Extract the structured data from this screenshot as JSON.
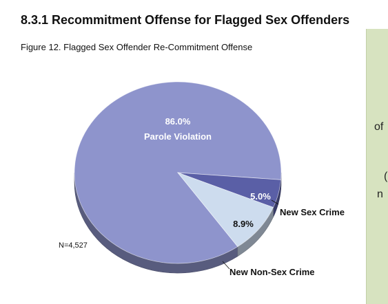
{
  "section_heading": "8.3.1  Recommitment Offense for Flagged Sex Offenders",
  "figure_caption": "Figure 12.  Flagged Sex Offender Re-Commitment Offense",
  "side_panel": {
    "line_1": "of",
    "line_2": "(",
    "line_3": "n"
  },
  "chart_data": {
    "type": "pie",
    "title": "",
    "slices": [
      {
        "label": "Parole Violation",
        "value": 86.0,
        "value_label": "86.0%",
        "color": "#8e94cc"
      },
      {
        "label": "New Sex Crime",
        "value": 5.0,
        "value_label": "5.0%",
        "color": "#5a5fa6"
      },
      {
        "label": "New Non-Sex Crime",
        "value": 8.9,
        "value_label": "8.9%",
        "color": "#cddcee"
      }
    ],
    "annotation": "N=4,527",
    "legend": "none"
  }
}
